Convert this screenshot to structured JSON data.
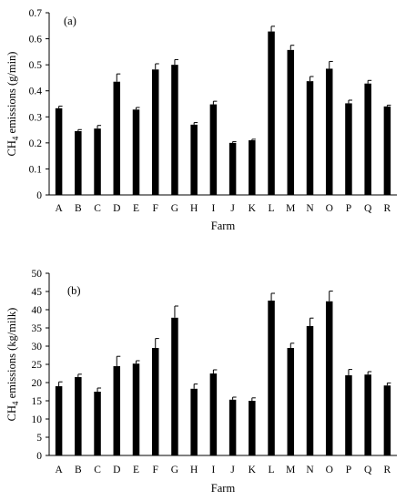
{
  "colors": {
    "bar": "#000000",
    "axis": "#000000",
    "background": "#ffffff"
  },
  "chart_data": [
    {
      "type": "bar",
      "panel_label": "(a)",
      "categories": [
        "A",
        "B",
        "C",
        "D",
        "E",
        "F",
        "G",
        "H",
        "I",
        "J",
        "K",
        "L",
        "M",
        "N",
        "O",
        "P",
        "Q",
        "R"
      ],
      "values": [
        0.333,
        0.245,
        0.255,
        0.435,
        0.328,
        0.482,
        0.5,
        0.27,
        0.348,
        0.2,
        0.21,
        0.628,
        0.557,
        0.437,
        0.485,
        0.352,
        0.428,
        0.34
      ],
      "errors": [
        0.008,
        0.006,
        0.012,
        0.03,
        0.008,
        0.022,
        0.02,
        0.008,
        0.012,
        0.005,
        0.004,
        0.02,
        0.018,
        0.018,
        0.028,
        0.012,
        0.012,
        0.005
      ],
      "xlabel": "Farm",
      "ylabel_main": "CH",
      "ylabel_sub": "4",
      "ylabel_rest": " emissions (g/min)",
      "ylim": [
        0,
        0.7
      ],
      "yticks": [
        0,
        0.1,
        0.2,
        0.3,
        0.4,
        0.5,
        0.6,
        0.7
      ],
      "ytick_labels": [
        "0",
        "0.1",
        "0.2",
        "0.3",
        "0.4",
        "0.5",
        "0.6",
        "0.7"
      ],
      "grid": false
    },
    {
      "type": "bar",
      "panel_label": "(b)",
      "categories": [
        "A",
        "B",
        "C",
        "D",
        "E",
        "F",
        "G",
        "H",
        "I",
        "J",
        "K",
        "L",
        "M",
        "N",
        "O",
        "P",
        "Q",
        "R"
      ],
      "values": [
        19.0,
        21.5,
        17.5,
        24.5,
        25.2,
        29.5,
        37.8,
        18.3,
        22.5,
        15.3,
        15.0,
        42.5,
        29.5,
        35.5,
        42.3,
        22.0,
        22.2,
        19.2
      ],
      "errors": [
        1.2,
        0.8,
        1.0,
        2.7,
        0.8,
        2.6,
        3.2,
        1.3,
        1.0,
        0.7,
        0.8,
        2.0,
        1.3,
        2.2,
        2.8,
        1.6,
        0.8,
        0.7
      ],
      "xlabel": "Farm",
      "ylabel_main": "CH",
      "ylabel_sub": "4",
      "ylabel_rest": " emissions (kg/milk)",
      "ylim": [
        0,
        50
      ],
      "yticks": [
        0,
        5,
        10,
        15,
        20,
        25,
        30,
        35,
        40,
        45,
        50
      ],
      "ytick_labels": [
        "0",
        "5",
        "10",
        "15",
        "20",
        "25",
        "30",
        "35",
        "40",
        "45",
        "50"
      ],
      "grid": false
    }
  ]
}
